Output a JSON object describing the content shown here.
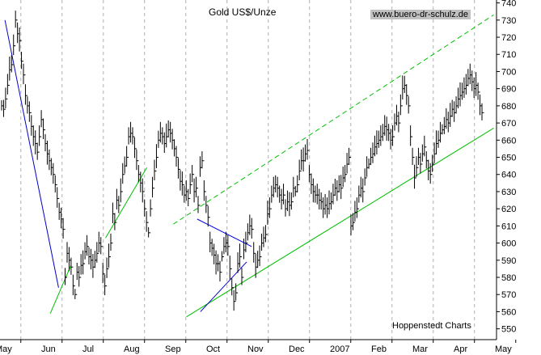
{
  "chart_data": {
    "type": "ohlc",
    "title": "Gold US$/Unze",
    "watermark": "www.buero-dr-schulz.de",
    "source": "Hoppenstedt Charts",
    "y_ticks": [
      550,
      560,
      570,
      580,
      590,
      600,
      610,
      620,
      630,
      640,
      650,
      660,
      670,
      680,
      690,
      700,
      710,
      720,
      730,
      740
    ],
    "ylim": [
      547,
      745
    ],
    "x_tick_labels": [
      "May",
      "Jun",
      "Jul",
      "Aug",
      "Sep",
      "Oct",
      "Nov",
      "Dec",
      "2007",
      "Feb",
      "Mar",
      "Apr",
      "May"
    ],
    "x_grid_index": [
      0,
      1,
      2,
      3,
      4,
      5,
      6,
      7,
      8,
      9,
      10,
      11,
      12
    ],
    "x_tick_offset": 0.25,
    "grid": true,
    "colors": {
      "bars": "#000000",
      "downtrend_lines": "#0000cc",
      "support_lines": "#00c000",
      "dashed_channel": "#00c000",
      "grid": "#b0b0b0"
    },
    "price_series": [
      [
        680,
        678,
        684,
        692,
        701,
        704,
        715,
        730,
        722,
        718,
        706,
        698,
        686,
        680,
        676,
        668,
        662,
        658,
        653,
        662,
        672,
        666,
        658,
        652,
        648,
        644,
        640,
        634,
        626,
        618,
        614,
        608
      ],
      [
        580,
        594,
        590,
        586,
        575,
        570,
        583,
        580,
        587,
        588,
        595,
        598,
        592,
        590,
        586,
        590,
        594,
        600,
        598,
        582,
        575,
        585,
        592,
        600,
        617,
        612,
        625,
        622,
        630,
        640,
        645
      ],
      [
        650,
        662,
        664,
        662,
        655,
        648,
        640,
        635,
        630,
        620,
        612,
        606,
        620,
        632,
        642,
        650,
        660,
        664,
        662,
        658,
        662,
        666,
        664,
        660,
        655,
        650,
        643,
        636,
        634,
        628,
        630,
        626,
        634,
        640,
        630,
        632,
        622
      ],
      [
        644,
        648,
        630,
        622,
        615,
        600,
        597,
        593,
        588,
        588,
        583,
        592,
        598,
        600,
        598,
        585,
        574,
        566,
        571,
        588,
        592,
        580,
        596,
        600,
        606,
        610,
        608,
        594,
        586,
        590,
        592,
        600,
        603,
        605,
        617,
        620
      ],
      [
        628,
        632,
        634,
        632,
        628,
        625,
        628,
        620,
        624,
        622,
        624,
        632,
        630,
        634,
        642,
        648,
        648,
        652,
        654,
        640,
        634,
        630,
        628,
        628,
        625,
        624,
        620,
        622,
        620,
        623,
        624,
        628,
        632,
        630,
        634,
        632,
        638,
        640,
        646,
        650
      ],
      [
        610,
        612,
        618,
        620,
        628,
        632,
        630,
        638,
        644,
        646,
        650,
        652,
        656,
        658,
        660,
        662,
        664,
        668,
        666,
        664,
        660,
        662,
        670,
        674,
        670,
        680,
        690,
        692,
        686,
        680
      ],
      [
        662,
        650,
        638,
        644,
        650,
        646,
        652,
        656,
        648,
        642,
        640,
        646,
        652,
        658,
        660,
        664,
        666,
        668,
        672,
        670,
        674,
        678,
        676,
        680,
        684,
        686,
        688,
        690,
        692,
        696,
        698,
        694,
        690,
        692,
        688,
        680,
        676
      ]
    ],
    "bar_ranges": [
      6,
      10,
      12,
      12,
      14,
      10,
      12,
      10,
      12,
      14,
      10,
      12,
      12,
      10,
      12,
      12,
      12,
      14,
      10,
      12,
      10,
      12,
      10,
      14,
      12,
      10,
      12,
      10,
      12,
      10,
      12,
      12,
      10,
      12,
      14,
      10,
      12
    ],
    "downtrend_1": {
      "from": [
        0.12,
        730
      ],
      "to": [
        1.42,
        574
      ]
    },
    "downtrend_2": {
      "from": [
        4.78,
        614
      ],
      "to": [
        6.1,
        598
      ]
    },
    "support_lines": [
      {
        "from": [
          1.22,
          559
        ],
        "to": [
          1.72,
          587
        ]
      },
      {
        "from": [
          2.56,
          603
        ],
        "to": [
          3.56,
          644
        ]
      },
      {
        "from": [
          4.52,
          557
        ],
        "to": [
          11.97,
          667
        ]
      },
      {
        "from": [
          4.86,
          560
        ],
        "to": [
          5.98,
          589
        ]
      }
    ],
    "channel_top": {
      "from": [
        4.2,
        611
      ],
      "to": [
        11.97,
        733
      ]
    }
  }
}
